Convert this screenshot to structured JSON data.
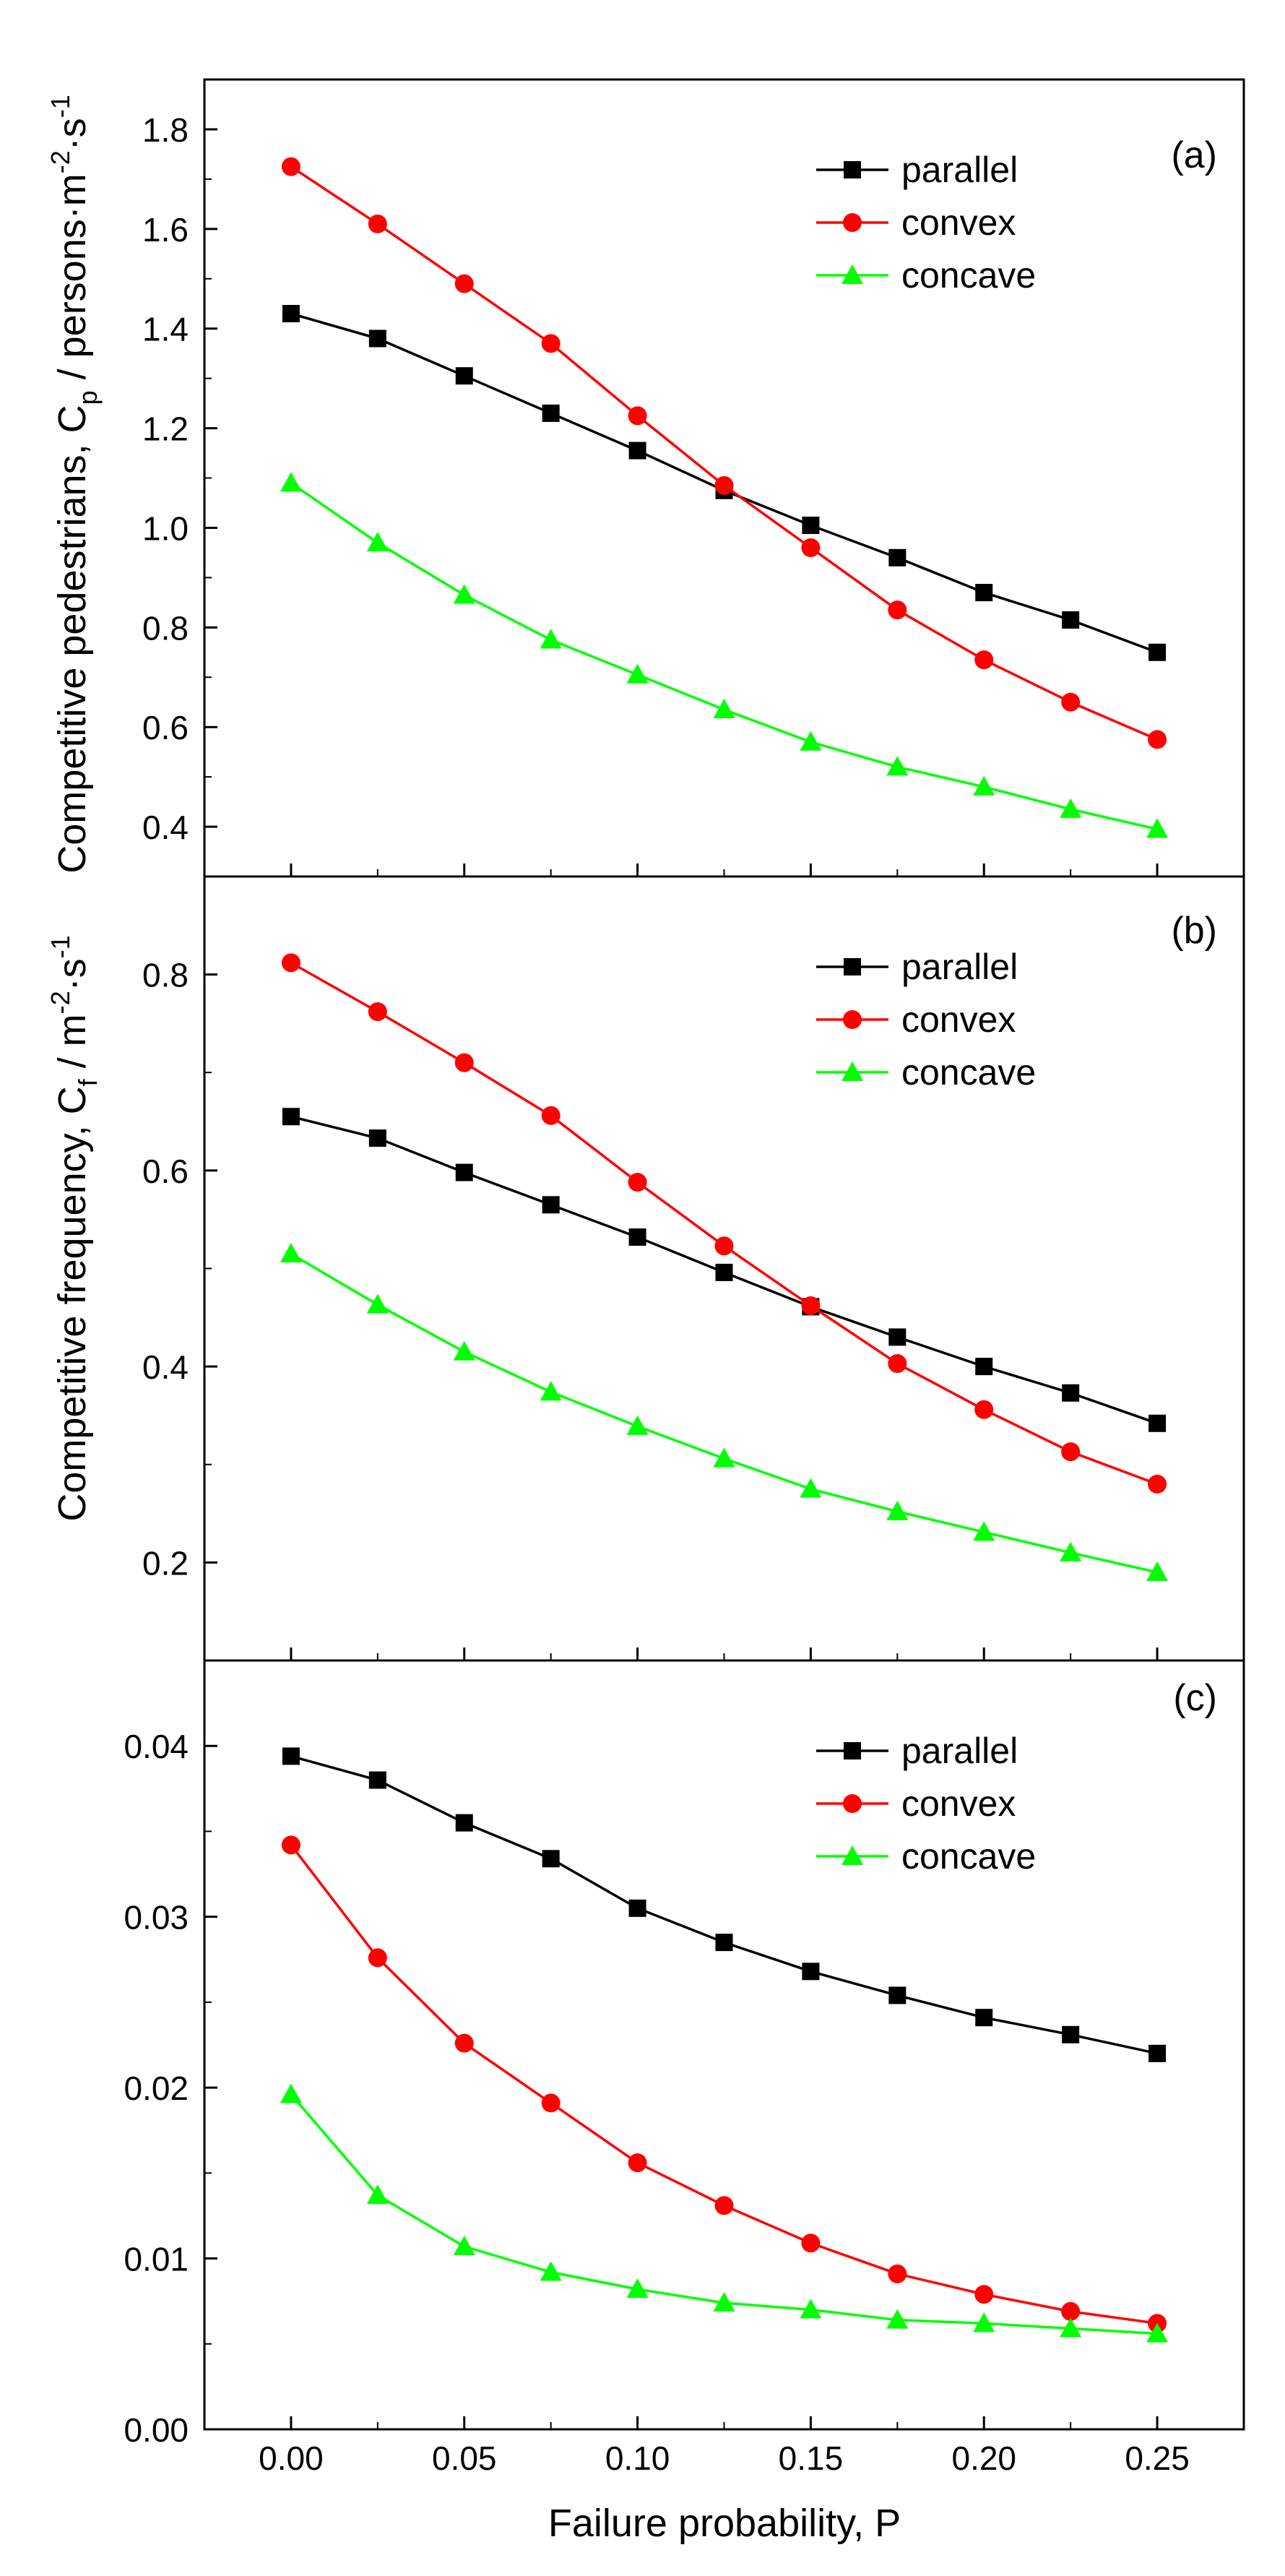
{
  "figure": {
    "x_label": "Failure probability, P",
    "x_ticks": [
      "0.00",
      "0.05",
      "0.10",
      "0.15",
      "0.20",
      "0.25"
    ]
  },
  "colors": {
    "parallel": "#000000",
    "convex": "#ff0000",
    "concave": "#00ff00"
  },
  "chart_data": [
    {
      "id": "a",
      "type": "line",
      "panel_label": "(a)",
      "ylabel": "Competitive pedestrians, C",
      "ylabel_sub": "p",
      "ylabel_unit": "persons·m",
      "ylabel_sup1": "-2",
      "ylabel_unit2": "·s",
      "ylabel_sup2": "-1",
      "xlim": [
        -0.025,
        0.275
      ],
      "ylim": [
        0.3,
        1.9
      ],
      "yticks": [
        0.4,
        0.6,
        0.8,
        1.0,
        1.2,
        1.4,
        1.6,
        1.8
      ],
      "ytick_labels": [
        "0.4",
        "0.6",
        "0.8",
        "1.0",
        "1.2",
        "1.4",
        "1.6",
        "1.8"
      ],
      "legend_position": "top-right",
      "x": [
        0,
        0.025,
        0.05,
        0.075,
        0.1,
        0.125,
        0.15,
        0.175,
        0.2,
        0.225,
        0.25
      ],
      "series": [
        {
          "name": "parallel",
          "marker": "square",
          "values": [
            1.43,
            1.38,
            1.305,
            1.23,
            1.155,
            1.075,
            1.005,
            0.94,
            0.87,
            0.815,
            0.75
          ]
        },
        {
          "name": "convex",
          "marker": "circle",
          "values": [
            1.725,
            1.61,
            1.49,
            1.37,
            1.225,
            1.085,
            0.96,
            0.835,
            0.735,
            0.65,
            0.575
          ]
        },
        {
          "name": "concave",
          "marker": "triangle",
          "values": [
            1.09,
            0.97,
            0.865,
            0.775,
            0.705,
            0.635,
            0.57,
            0.52,
            0.48,
            0.435,
            0.395
          ]
        }
      ]
    },
    {
      "id": "b",
      "type": "line",
      "panel_label": "(b)",
      "ylabel": "Competitive frequency, C",
      "ylabel_sub": "f",
      "ylabel_unit": "m",
      "ylabel_sup1": "-2",
      "ylabel_unit2": "·s",
      "ylabel_sup2": "-1",
      "xlim": [
        -0.025,
        0.275
      ],
      "ylim": [
        0.1,
        0.9
      ],
      "yticks": [
        0.2,
        0.4,
        0.6,
        0.8
      ],
      "ytick_labels": [
        "0.2",
        "0.4",
        "0.6",
        "0.8"
      ],
      "legend_position": "top-right",
      "x": [
        0,
        0.025,
        0.05,
        0.075,
        0.1,
        0.125,
        0.15,
        0.175,
        0.2,
        0.225,
        0.25
      ],
      "series": [
        {
          "name": "parallel",
          "marker": "square",
          "values": [
            0.655,
            0.633,
            0.598,
            0.565,
            0.532,
            0.496,
            0.461,
            0.43,
            0.4,
            0.373,
            0.342
          ]
        },
        {
          "name": "convex",
          "marker": "circle",
          "values": [
            0.812,
            0.762,
            0.71,
            0.656,
            0.588,
            0.523,
            0.462,
            0.403,
            0.356,
            0.313,
            0.28
          ]
        },
        {
          "name": "concave",
          "marker": "triangle",
          "values": [
            0.515,
            0.463,
            0.415,
            0.374,
            0.339,
            0.306,
            0.275,
            0.252,
            0.231,
            0.21,
            0.19
          ]
        }
      ]
    },
    {
      "id": "c",
      "type": "line",
      "panel_label": "(c)",
      "xlim": [
        -0.025,
        0.275
      ],
      "ylim": [
        0.0,
        0.045
      ],
      "yticks": [
        0.0,
        0.01,
        0.02,
        0.03,
        0.04
      ],
      "ytick_labels": [
        "0.00",
        "0.01",
        "0.02",
        "0.03",
        "0.04"
      ],
      "legend_position": "top-right",
      "x": [
        0,
        0.025,
        0.05,
        0.075,
        0.1,
        0.125,
        0.15,
        0.175,
        0.2,
        0.225,
        0.25
      ],
      "series": [
        {
          "name": "parallel",
          "marker": "square",
          "values": [
            0.0394,
            0.038,
            0.0355,
            0.0334,
            0.0305,
            0.0285,
            0.0268,
            0.0254,
            0.0241,
            0.0231,
            0.022
          ]
        },
        {
          "name": "convex",
          "marker": "circle",
          "values": [
            0.0342,
            0.0276,
            0.0226,
            0.0191,
            0.0156,
            0.0131,
            0.0109,
            0.0091,
            0.0079,
            0.0069,
            0.0062
          ]
        },
        {
          "name": "concave",
          "marker": "triangle",
          "values": [
            0.0196,
            0.0137,
            0.0107,
            0.0092,
            0.0082,
            0.0074,
            0.007,
            0.0064,
            0.0062,
            0.0059,
            0.0056
          ]
        }
      ]
    }
  ]
}
